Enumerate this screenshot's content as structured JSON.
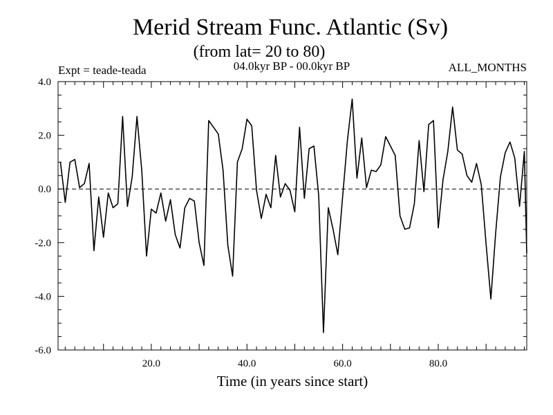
{
  "chart_data": {
    "type": "line",
    "title": "Merid Stream Func. Atlantic (Sv)",
    "subtitle": "(from lat= 20 to 80)",
    "left_label": "Expt = teade-teada",
    "center_label": "04.0kyr BP - 00.0kyr BP",
    "right_label": "ALL_MONTHS",
    "xlabel": "Time (in years since start)",
    "ylabel": "",
    "xlim": [
      0.5,
      98.5
    ],
    "ylim": [
      -6.0,
      4.0
    ],
    "xticks": [
      20,
      40,
      60,
      80
    ],
    "xtick_labels": [
      "20.0",
      "40.0",
      "60.0",
      "80.0"
    ],
    "yticks": [
      4.0,
      2.0,
      0.0,
      -2.0,
      -4.0,
      -6.0
    ],
    "ytick_labels": [
      "4.0",
      "2.0",
      "0.0",
      "-2.0",
      "-4.0",
      "-6.0"
    ],
    "reference_line": 0.0,
    "grid": false,
    "series": [
      {
        "name": "Merid Stream Func. Atlantic",
        "x": [
          1,
          2,
          3,
          4,
          5,
          6,
          7,
          8,
          9,
          10,
          11,
          12,
          13,
          14,
          15,
          16,
          17,
          18,
          19,
          20,
          21,
          22,
          23,
          24,
          25,
          26,
          27,
          28,
          29,
          30,
          31,
          32,
          33,
          34,
          35,
          36,
          37,
          38,
          39,
          40,
          41,
          42,
          43,
          44,
          45,
          46,
          47,
          48,
          49,
          50,
          51,
          52,
          53,
          54,
          55,
          56,
          57,
          58,
          59,
          60,
          61,
          62,
          63,
          64,
          65,
          66,
          67,
          68,
          69,
          70,
          71,
          72,
          73,
          74,
          75,
          76,
          77,
          78,
          79,
          80,
          81,
          82,
          83,
          84,
          85,
          86,
          87,
          88,
          89,
          90,
          91,
          92,
          93,
          94,
          95,
          96,
          97,
          98,
          99
        ],
        "values": [
          1.0,
          -0.5,
          1.0,
          1.1,
          0.05,
          0.2,
          0.95,
          -2.3,
          -0.3,
          -1.8,
          -0.15,
          -0.7,
          -0.55,
          2.7,
          -0.65,
          0.45,
          2.7,
          0.7,
          -2.5,
          -0.75,
          -0.9,
          -0.15,
          -1.2,
          -0.4,
          -1.7,
          -2.2,
          -0.7,
          -0.35,
          -0.45,
          -2.0,
          -2.85,
          2.55,
          2.3,
          2.05,
          0.7,
          -2.1,
          -3.25,
          1.0,
          1.5,
          2.6,
          2.35,
          -0.05,
          -1.1,
          -0.2,
          -0.7,
          1.25,
          -0.3,
          0.2,
          -0.05,
          -0.85,
          2.3,
          -0.35,
          1.5,
          1.6,
          -0.25,
          -5.35,
          -0.7,
          -1.5,
          -2.45,
          -0.3,
          1.8,
          3.35,
          0.4,
          1.9,
          0.05,
          0.7,
          0.65,
          0.9,
          1.95,
          1.6,
          1.25,
          -1.0,
          -1.5,
          -1.45,
          -0.55,
          1.8,
          -0.1,
          2.4,
          2.55,
          -1.45,
          0.35,
          1.4,
          3.05,
          1.45,
          1.3,
          0.5,
          0.25,
          0.95,
          0.15,
          -2.05,
          -4.1,
          -1.65,
          0.45,
          1.35,
          1.75,
          1.15,
          -0.65,
          1.4,
          -2.4
        ]
      }
    ]
  }
}
